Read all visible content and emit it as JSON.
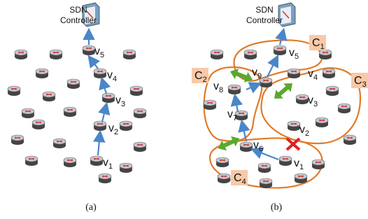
{
  "panels": [
    {
      "caption": "(a)",
      "controller": [
        "SDN",
        "Controller"
      ],
      "nodes": [
        {
          "base": "v",
          "sub": "1"
        },
        {
          "base": "v",
          "sub": "2"
        },
        {
          "base": "v",
          "sub": "3"
        },
        {
          "base": "v",
          "sub": "4"
        },
        {
          "base": "v",
          "sub": "5"
        }
      ]
    },
    {
      "caption": "(b)",
      "controller": [
        "SDN",
        "Controller"
      ],
      "nodes": [
        {
          "base": "v",
          "sub": "1"
        },
        {
          "base": "v",
          "sub": "2"
        },
        {
          "base": "v",
          "sub": "3"
        },
        {
          "base": "v",
          "sub": "4"
        },
        {
          "base": "v",
          "sub": "5"
        },
        {
          "base": "v",
          "sub": "6"
        },
        {
          "base": "v",
          "sub": "7"
        },
        {
          "base": "v",
          "sub": "8"
        },
        {
          "base": "v",
          "sub": "9"
        }
      ],
      "clusters": [
        {
          "base": "C",
          "sub": "1"
        },
        {
          "base": "C",
          "sub": "2"
        },
        {
          "base": "C",
          "sub": "3"
        },
        {
          "base": "C",
          "sub": "4"
        }
      ]
    }
  ]
}
